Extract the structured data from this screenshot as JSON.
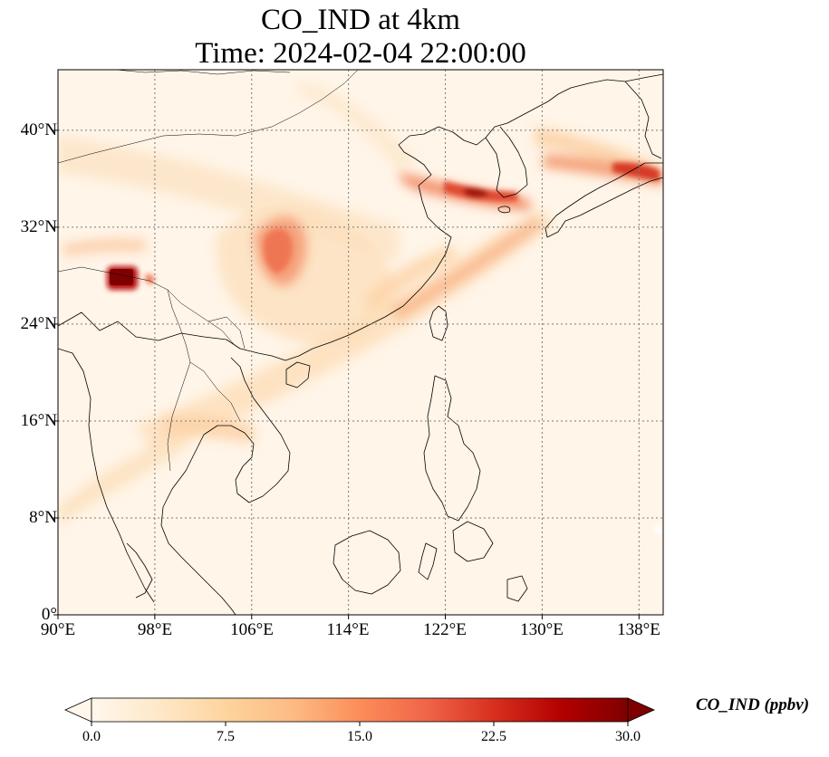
{
  "title_line1": "CO_IND at 4km",
  "title_line2": "Time: 2024-02-04 22:00:00",
  "map": {
    "lon_range": [
      90,
      140
    ],
    "lat_range": [
      0,
      45
    ],
    "lon_ticks": [
      "90°E",
      "98°E",
      "106°E",
      "114°E",
      "122°E",
      "130°E",
      "138°E"
    ],
    "lat_ticks": [
      "0°",
      "8°N",
      "16°N",
      "24°N",
      "32°N",
      "40°N"
    ],
    "gridlines": "dotted"
  },
  "colorbar": {
    "label": "CO_IND (ppbv)",
    "min": 0.0,
    "max": 30.0,
    "ticks": [
      "0.0",
      "7.5",
      "15.0",
      "22.5",
      "30.0"
    ],
    "extend": "both",
    "colormap": "OrRd",
    "colors": [
      "#fff7ec",
      "#fee8c8",
      "#fdd49e",
      "#fdbb84",
      "#fc8d59",
      "#ef6548",
      "#d7301f",
      "#b30000",
      "#7f0000"
    ]
  },
  "field_features": [
    {
      "name": "south-asia-hotspot",
      "lon": 94.5,
      "lat": 28,
      "value": 30
    },
    {
      "name": "sichuan-basin-plume",
      "lon": 108,
      "lat": 30,
      "value": 15
    },
    {
      "name": "bohai-korea-plume",
      "lon": 126,
      "lat": 35,
      "value": 26
    },
    {
      "name": "japan-outflow",
      "lon": 136.5,
      "lat": 37,
      "value": 18
    }
  ]
}
